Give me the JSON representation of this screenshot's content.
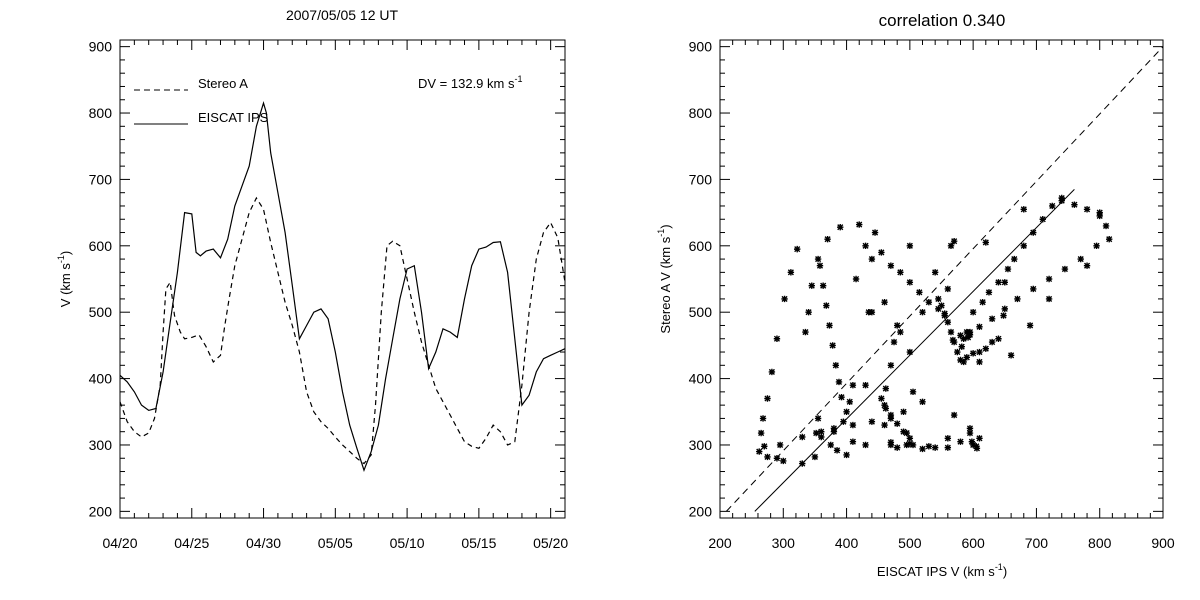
{
  "colors": {
    "background": "#ffffff",
    "ink": "#000000"
  },
  "chart_data": [
    {
      "type": "line",
      "title": "2007/05/05 12 UT",
      "ylabel": "V (km s",
      "ylabel_sup": "-1",
      "ylabel_close": ")",
      "xlabel": "",
      "xlim": [
        0,
        31
      ],
      "ylim": [
        190,
        910
      ],
      "x_tick_labels": [
        "04/20",
        "04/25",
        "04/30",
        "05/05",
        "05/10",
        "05/15",
        "05/20"
      ],
      "x_tick_values": [
        0,
        5,
        10,
        15,
        20,
        25,
        30
      ],
      "y_ticks": [
        200,
        300,
        400,
        500,
        600,
        700,
        800,
        900
      ],
      "annotation": {
        "text": "DV = 132.9 km s",
        "sup": "-1"
      },
      "legend_placement": "top-left",
      "series": [
        {
          "name": "Stereo A",
          "style": "dashed",
          "x": [
            0,
            0.5,
            1,
            1.5,
            2,
            2.4,
            2.8,
            3,
            3.2,
            3.5,
            3.8,
            4.2,
            4.5,
            5,
            5.5,
            6,
            6.5,
            7,
            7.3,
            7.6,
            8,
            8.5,
            9,
            9.5,
            10,
            10.5,
            11,
            11.5,
            12,
            12.5,
            13,
            13.5,
            14,
            14.5,
            15,
            15.5,
            16,
            16.5,
            17,
            17.5,
            17.8,
            18.2,
            18.6,
            19,
            19.5,
            20,
            20.5,
            21,
            21.5,
            22,
            22.5,
            23,
            23.5,
            24,
            24.5,
            25,
            25.5,
            26,
            26.5,
            27,
            27.5,
            28,
            28.5,
            29,
            29.5,
            30,
            30.5,
            31
          ],
          "values": [
            365,
            335,
            320,
            312,
            318,
            340,
            390,
            470,
            535,
            545,
            495,
            470,
            460,
            462,
            466,
            448,
            425,
            435,
            480,
            520,
            570,
            610,
            650,
            672,
            655,
            605,
            560,
            515,
            480,
            440,
            380,
            350,
            335,
            325,
            312,
            300,
            290,
            280,
            272,
            285,
            360,
            500,
            600,
            607,
            600,
            550,
            500,
            455,
            420,
            385,
            365,
            345,
            325,
            305,
            298,
            295,
            310,
            330,
            320,
            300,
            305,
            390,
            500,
            580,
            620,
            635,
            612,
            545
          ]
        },
        {
          "name": "EISCAT IPS",
          "style": "solid",
          "x": [
            0,
            0.5,
            1,
            1.5,
            2,
            2.5,
            3,
            3.5,
            4,
            4.5,
            5,
            5.3,
            5.6,
            6,
            6.5,
            7,
            7.5,
            8,
            8.5,
            9,
            9.5,
            10,
            10.2,
            10.5,
            11,
            11.5,
            12,
            12.5,
            13,
            13.5,
            14,
            14.5,
            15,
            15.5,
            16,
            16.5,
            17,
            17.5,
            18,
            18.5,
            19,
            19.5,
            20,
            20.5,
            21,
            21.5,
            22,
            22.5,
            23,
            23.5,
            24,
            24.5,
            25,
            25.5,
            26,
            26.5,
            27,
            27.5,
            28,
            28.5,
            29,
            29.5,
            30,
            30.5,
            31
          ],
          "values": [
            405,
            395,
            380,
            360,
            352,
            355,
            410,
            485,
            560,
            650,
            648,
            590,
            585,
            592,
            595,
            582,
            610,
            660,
            690,
            720,
            780,
            815,
            800,
            740,
            680,
            620,
            540,
            460,
            480,
            500,
            505,
            490,
            440,
            380,
            330,
            295,
            262,
            290,
            330,
            400,
            460,
            520,
            565,
            570,
            500,
            415,
            440,
            475,
            470,
            462,
            520,
            570,
            595,
            598,
            605,
            606,
            560,
            460,
            360,
            375,
            410,
            430,
            435,
            440,
            445
          ]
        }
      ]
    },
    {
      "type": "scatter",
      "title": "correlation 0.340",
      "xlabel": "EISCAT IPS V (km s",
      "xlabel_sup": "-1",
      "xlabel_close": ")",
      "ylabel": "Stereo A V (km s",
      "ylabel_sup": "-1",
      "ylabel_close": ")",
      "xlim": [
        200,
        900
      ],
      "ylim": [
        190,
        910
      ],
      "x_ticks": [
        200,
        300,
        400,
        500,
        600,
        700,
        800,
        900
      ],
      "y_ticks": [
        200,
        300,
        400,
        500,
        600,
        700,
        800,
        900
      ],
      "reference_lines": [
        {
          "style": "dashed",
          "points": [
            [
              210,
              200
            ],
            [
              900,
              900
            ]
          ]
        },
        {
          "style": "solid",
          "points": [
            [
              255,
              200
            ],
            [
              760,
              685
            ]
          ]
        }
      ],
      "marker": "*",
      "points": [
        [
          405,
          365
        ],
        [
          395,
          335
        ],
        [
          380,
          320
        ],
        [
          360,
          312
        ],
        [
          352,
          318
        ],
        [
          355,
          340
        ],
        [
          410,
          390
        ],
        [
          485,
          470
        ],
        [
          560,
          535
        ],
        [
          650,
          545
        ],
        [
          648,
          495
        ],
        [
          590,
          470
        ],
        [
          585,
          460
        ],
        [
          592,
          462
        ],
        [
          595,
          466
        ],
        [
          582,
          448
        ],
        [
          610,
          425
        ],
        [
          660,
          435
        ],
        [
          690,
          480
        ],
        [
          720,
          520
        ],
        [
          780,
          570
        ],
        [
          815,
          610
        ],
        [
          800,
          650
        ],
        [
          740,
          672
        ],
        [
          680,
          655
        ],
        [
          620,
          605
        ],
        [
          540,
          560
        ],
        [
          460,
          515
        ],
        [
          480,
          480
        ],
        [
          500,
          440
        ],
        [
          505,
          380
        ],
        [
          490,
          350
        ],
        [
          440,
          335
        ],
        [
          380,
          325
        ],
        [
          330,
          312
        ],
        [
          295,
          300
        ],
        [
          262,
          290
        ],
        [
          290,
          280
        ],
        [
          330,
          272
        ],
        [
          400,
          285
        ],
        [
          460,
          360
        ],
        [
          520,
          500
        ],
        [
          565,
          600
        ],
        [
          570,
          607
        ],
        [
          500,
          600
        ],
        [
          415,
          550
        ],
        [
          440,
          500
        ],
        [
          475,
          455
        ],
        [
          470,
          420
        ],
        [
          462,
          385
        ],
        [
          520,
          365
        ],
        [
          570,
          345
        ],
        [
          595,
          325
        ],
        [
          598,
          305
        ],
        [
          605,
          298
        ],
        [
          606,
          295
        ],
        [
          560,
          310
        ],
        [
          460,
          330
        ],
        [
          360,
          320
        ],
        [
          375,
          300
        ],
        [
          410,
          305
        ],
        [
          430,
          390
        ],
        [
          435,
          500
        ],
        [
          440,
          580
        ],
        [
          445,
          620
        ],
        [
          420,
          632
        ],
        [
          390,
          628
        ],
        [
          370,
          610
        ],
        [
          355,
          580
        ],
        [
          345,
          540
        ],
        [
          340,
          500
        ],
        [
          335,
          470
        ],
        [
          322,
          595
        ],
        [
          312,
          560
        ],
        [
          302,
          520
        ],
        [
          290,
          460
        ],
        [
          282,
          410
        ],
        [
          275,
          370
        ],
        [
          268,
          340
        ],
        [
          265,
          318
        ],
        [
          270,
          298
        ],
        [
          275,
          282
        ],
        [
          300,
          276
        ],
        [
          350,
          282
        ],
        [
          385,
          292
        ],
        [
          430,
          300
        ],
        [
          470,
          304
        ],
        [
          500,
          302
        ],
        [
          530,
          298
        ],
        [
          560,
          296
        ],
        [
          580,
          305
        ],
        [
          595,
          318
        ],
        [
          610,
          310
        ],
        [
          600,
          300
        ],
        [
          540,
          296
        ],
        [
          520,
          294
        ],
        [
          505,
          300
        ],
        [
          495,
          318
        ],
        [
          480,
          332
        ],
        [
          470,
          340
        ],
        [
          462,
          355
        ],
        [
          455,
          370
        ],
        [
          470,
          345
        ],
        [
          490,
          320
        ],
        [
          500,
          310
        ],
        [
          495,
          300
        ],
        [
          480,
          296
        ],
        [
          470,
          300
        ],
        [
          640,
          460
        ],
        [
          630,
          455
        ],
        [
          620,
          445
        ],
        [
          610,
          440
        ],
        [
          600,
          438
        ],
        [
          590,
          432
        ],
        [
          585,
          425
        ],
        [
          580,
          428
        ],
        [
          575,
          440
        ],
        [
          570,
          455
        ],
        [
          565,
          470
        ],
        [
          560,
          485
        ],
        [
          555,
          498
        ],
        [
          550,
          510
        ],
        [
          545,
          520
        ],
        [
          600,
          500
        ],
        [
          615,
          515
        ],
        [
          625,
          530
        ],
        [
          640,
          545
        ],
        [
          655,
          565
        ],
        [
          665,
          580
        ],
        [
          680,
          600
        ],
        [
          695,
          620
        ],
        [
          710,
          640
        ],
        [
          725,
          660
        ],
        [
          740,
          668
        ],
        [
          760,
          662
        ],
        [
          780,
          655
        ],
        [
          800,
          645
        ],
        [
          810,
          630
        ],
        [
          795,
          600
        ],
        [
          770,
          580
        ],
        [
          745,
          565
        ],
        [
          720,
          550
        ],
        [
          695,
          535
        ],
        [
          670,
          520
        ],
        [
          650,
          505
        ],
        [
          630,
          490
        ],
        [
          610,
          478
        ],
        [
          595,
          470
        ],
        [
          580,
          465
        ],
        [
          568,
          458
        ],
        [
          410,
          330
        ],
        [
          400,
          350
        ],
        [
          392,
          372
        ],
        [
          388,
          395
        ],
        [
          383,
          420
        ],
        [
          378,
          450
        ],
        [
          373,
          480
        ],
        [
          368,
          510
        ],
        [
          363,
          540
        ],
        [
          358,
          570
        ],
        [
          430,
          600
        ],
        [
          455,
          590
        ],
        [
          470,
          570
        ],
        [
          485,
          560
        ],
        [
          500,
          545
        ],
        [
          515,
          530
        ],
        [
          530,
          515
        ],
        [
          545,
          505
        ],
        [
          555,
          495
        ]
      ]
    }
  ]
}
